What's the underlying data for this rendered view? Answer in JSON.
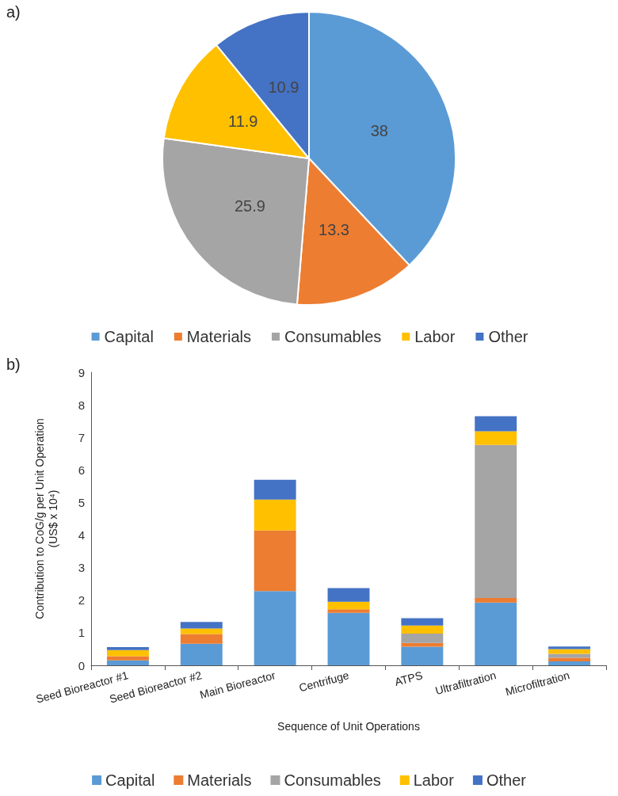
{
  "chart_data": [
    {
      "type": "pie",
      "annotations": [
        "a)"
      ],
      "categories": [
        "Capital",
        "Materials",
        "Consumables",
        "Labor",
        "Other"
      ],
      "values": [
        38,
        13.3,
        25.9,
        11.9,
        10.9
      ],
      "colors": [
        "#5b9bd5",
        "#ed7d31",
        "#a5a5a5",
        "#ffc000",
        "#4472c4"
      ],
      "data_labels": true,
      "legend": "bottom"
    },
    {
      "type": "bar",
      "annotations": [
        "b)"
      ],
      "stacked": true,
      "xlabel": "Sequence of Unit Operations",
      "ylabel": "Contribution to CoG/g per Unit Operation\n(US$ x 10⁴)",
      "categories": [
        "Seed Bioreactor #1",
        "Seed Bioreactor #2",
        "Main Bioreactor",
        "Centrifuge",
        "ATPS",
        "Ultrafiltration",
        "Microfiltration"
      ],
      "ylim": [
        0,
        9
      ],
      "yticks": [
        0,
        1,
        2,
        3,
        4,
        5,
        6,
        7,
        8,
        9
      ],
      "grid": false,
      "legend": "bottom",
      "series": [
        {
          "name": "Capital",
          "color": "#5b9bd5",
          "values": [
            0.15,
            0.66,
            2.28,
            1.61,
            0.57,
            1.93,
            0.12
          ]
        },
        {
          "name": "Materials",
          "color": "#ed7d31",
          "values": [
            0.13,
            0.3,
            1.86,
            0.11,
            0.12,
            0.14,
            0.11
          ]
        },
        {
          "name": "Consumables",
          "color": "#a5a5a5",
          "values": [
            null,
            null,
            null,
            0,
            0.28,
            4.7,
            0.12
          ]
        },
        {
          "name": "Labor",
          "color": "#ffc000",
          "values": [
            0.19,
            0.17,
            0.95,
            0.23,
            0.25,
            0.42,
            0.15
          ]
        },
        {
          "name": "Other",
          "color": "#4472c4",
          "values": [
            0.09,
            0.2,
            0.61,
            0.42,
            0.23,
            0.46,
            0.08
          ]
        }
      ]
    }
  ]
}
